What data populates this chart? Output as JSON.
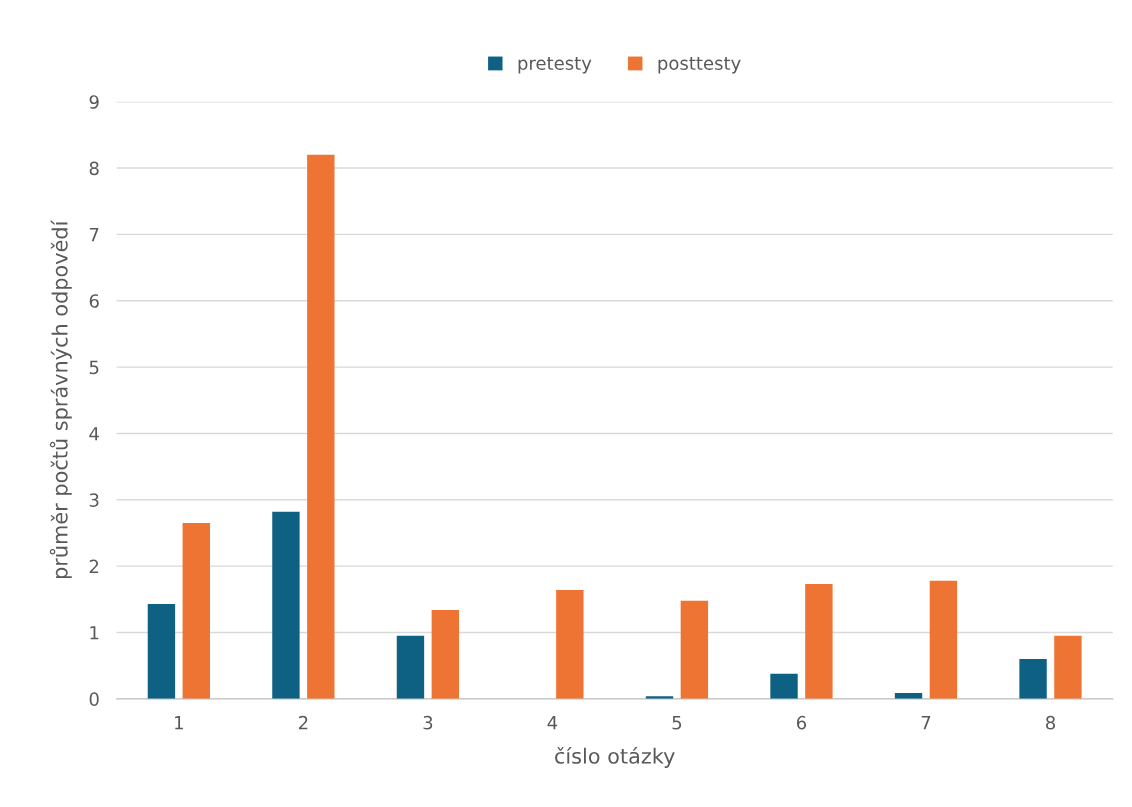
{
  "chart_data": {
    "type": "bar",
    "xlabel": "číslo otázky",
    "ylabel": "průměr počtů správných odpovědí",
    "categories": [
      "1",
      "2",
      "3",
      "4",
      "5",
      "6",
      "7",
      "8"
    ],
    "series": [
      {
        "name": "pretesty",
        "color": "#0f6184",
        "values": [
          1.43,
          2.82,
          0.95,
          0,
          0.04,
          0.38,
          0.09,
          0.6
        ]
      },
      {
        "name": "posttesty",
        "color": "#ed7433",
        "values": [
          2.65,
          8.2,
          1.34,
          1.64,
          1.48,
          1.73,
          1.78,
          0.95
        ]
      }
    ],
    "ylim": [
      0,
      9
    ],
    "yticks": [
      0,
      1,
      2,
      3,
      4,
      5,
      6,
      7,
      8,
      9
    ],
    "grid": "y",
    "legend": "top"
  }
}
